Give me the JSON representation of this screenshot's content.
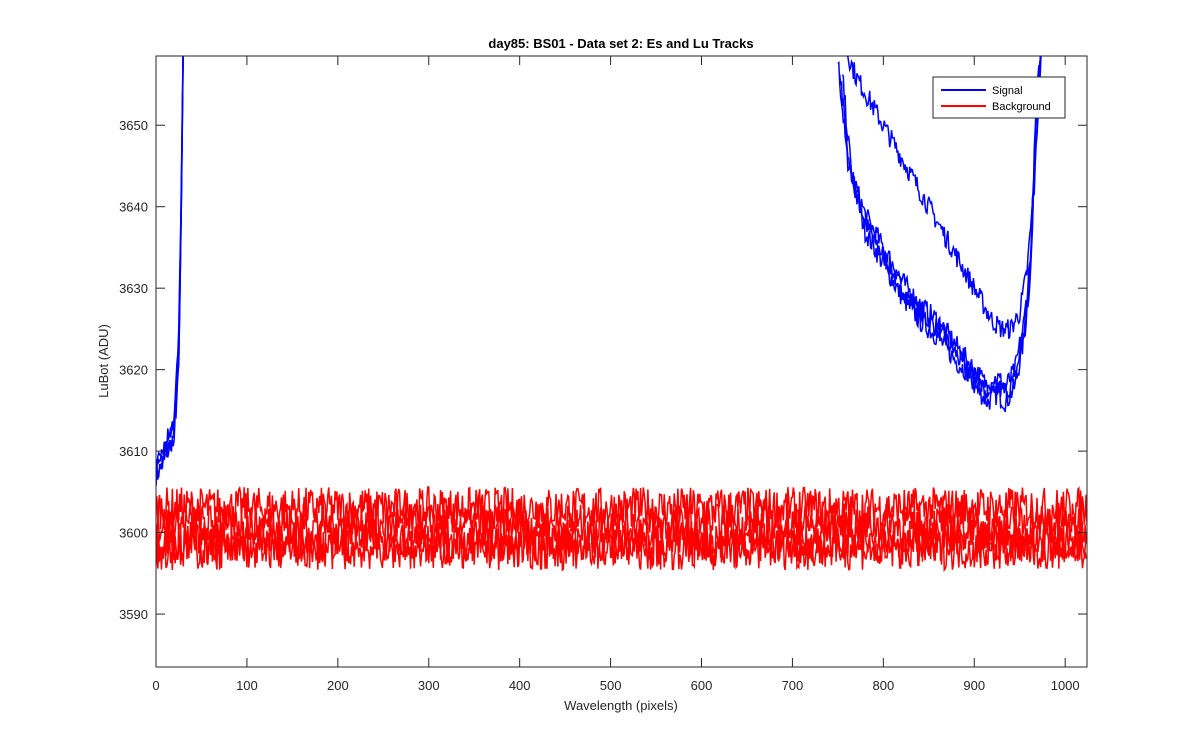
{
  "chart_data": {
    "type": "line",
    "title": "day85: BS01 - Data set 2: Es and Lu Tracks",
    "xlabel": "Wavelength (pixels)",
    "ylabel": "LuBot (ADU)",
    "xlim": [
      0,
      1024
    ],
    "ylim": [
      3583.5,
      3658.5
    ],
    "xticks": [
      0,
      100,
      200,
      300,
      400,
      500,
      600,
      700,
      800,
      900,
      1000
    ],
    "yticks": [
      3590,
      3600,
      3610,
      3620,
      3630,
      3640,
      3650
    ],
    "grid": false,
    "legend": {
      "placement": "top-right",
      "entries": [
        "Signal",
        "Background"
      ]
    },
    "colors": {
      "Signal": "#0000ff",
      "Background": "#ff0000"
    },
    "series": [
      {
        "name": "Signal",
        "traces": [
          {
            "x": [
              0,
              10,
              20,
              25,
              28,
              30,
              750,
              760,
              780,
              800,
              820,
              840,
              860,
              880,
              900,
              915,
              925,
              935,
              945,
              955,
              962,
              968,
              975
            ],
            "y": [
              3607,
              3609,
              3612,
              3620,
              3640,
              3660,
              3658,
              3646,
              3638,
              3634,
              3630,
              3627,
              3625,
              3622,
              3618,
              3616,
              3617,
              3616,
              3618,
              3624,
              3632,
              3648,
              3662
            ]
          },
          {
            "x": [
              0,
              10,
              20,
              25,
              28,
              30,
              752,
              762,
              780,
              800,
              820,
              840,
              860,
              880,
              900,
              915,
              925,
              935,
              945,
              955,
              962,
              968,
              975
            ],
            "y": [
              3608,
              3610,
              3613,
              3622,
              3642,
              3660,
              3657,
              3645,
              3637,
              3633,
              3629,
              3626,
              3624,
              3621,
              3619,
              3617,
              3618,
              3617,
              3619,
              3625,
              3633,
              3650,
              3662
            ]
          },
          {
            "x": [
              0,
              10,
              20,
              25,
              28,
              30,
              755,
              765,
              780,
              800,
              820,
              840,
              860,
              880,
              900,
              915,
              925,
              935,
              945,
              955,
              962,
              968,
              975
            ],
            "y": [
              3609,
              3611,
              3614,
              3624,
              3644,
              3660,
              3656,
              3644,
              3639,
              3635,
              3631,
              3628,
              3626,
              3623,
              3620,
              3618,
              3619,
              3618,
              3620,
              3626,
              3634,
              3652,
              3662
            ]
          },
          {
            "x": [
              0,
              10,
              20,
              25,
              28,
              30,
              760,
              770,
              790,
              810,
              830,
              850,
              870,
              890,
              910,
              920,
              930,
              940,
              950,
              958,
              964,
              968,
              975
            ],
            "y": [
              3607,
              3610,
              3612,
              3621,
              3641,
              3660,
              3659,
              3656,
              3652,
              3648,
              3644,
              3640,
              3636,
              3632,
              3628,
              3626,
              3625,
              3625,
              3627,
              3632,
              3640,
              3650,
              3662
            ]
          }
        ]
      },
      {
        "name": "Background",
        "traces": [
          {
            "x": [
              0,
              1024
            ],
            "y": [
              3603,
              3603
            ]
          },
          {
            "x": [
              0,
              1024
            ],
            "y": [
              3601,
              3601
            ]
          },
          {
            "x": [
              0,
              1024
            ],
            "y": [
              3599,
              3599
            ]
          },
          {
            "x": [
              0,
              1024
            ],
            "y": [
              3598,
              3598
            ]
          }
        ]
      }
    ]
  }
}
